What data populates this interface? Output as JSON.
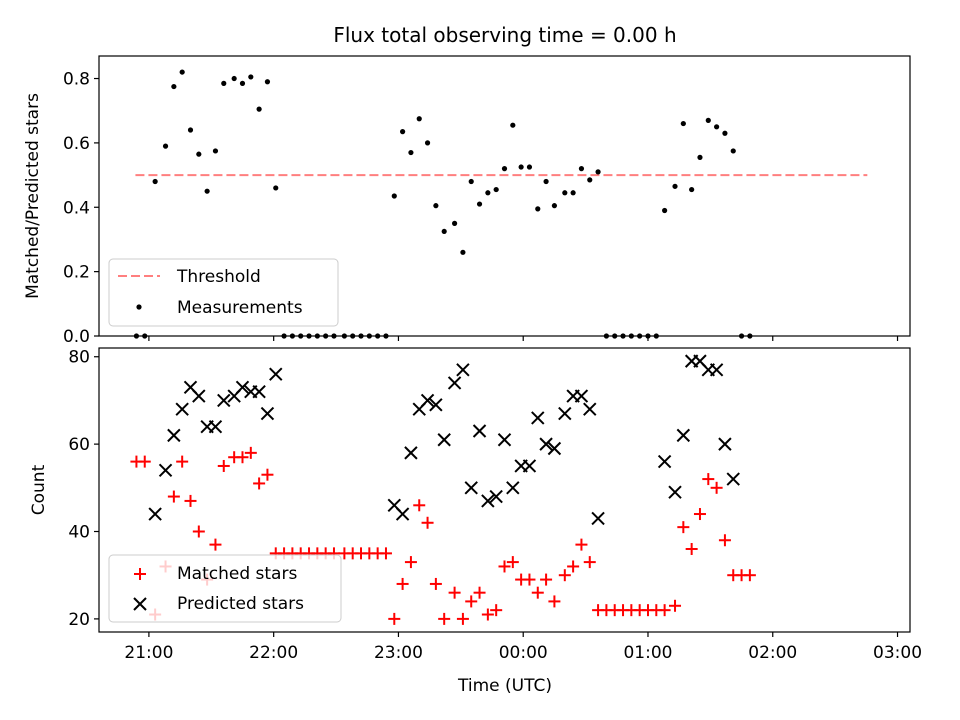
{
  "figure": {
    "title": "Flux total observing time = 0.00 h",
    "xlabel": "Time (UTC)",
    "xticks": [
      "21:00",
      "22:00",
      "23:00",
      "00:00",
      "01:00",
      "02:00",
      "03:00"
    ],
    "colors": {
      "threshold": "#ff7f7f",
      "measurements": "#000000",
      "matched": "#ff0000",
      "predicted": "#000000"
    }
  },
  "chart_data": [
    {
      "type": "scatter",
      "ylabel": "Matched/Predicted stars",
      "xlim": [
        "20:36",
        "03:06"
      ],
      "ylim": [
        0,
        0.87
      ],
      "yticks": [
        "0.0",
        "0.2",
        "0.4",
        "0.6",
        "0.8"
      ],
      "grid": false,
      "legend": {
        "placement": "lower-left",
        "threshold_label": "Threshold",
        "measurements_label": "Measurements"
      },
      "threshold": 0.5,
      "threshold_x_range": [
        "20:54",
        "02:45"
      ],
      "series": [
        {
          "name": "Measurements",
          "points": [
            [
              "20:54",
              0
            ],
            [
              "20:58",
              0
            ],
            [
              "21:03",
              0.48
            ],
            [
              "21:08",
              0.59
            ],
            [
              "21:12",
              0.775
            ],
            [
              "21:16",
              0.82
            ],
            [
              "21:20",
              0.64
            ],
            [
              "21:24",
              0.565
            ],
            [
              "21:28",
              0.45
            ],
            [
              "21:32",
              0.575
            ],
            [
              "21:36",
              0.785
            ],
            [
              "21:41",
              0.8
            ],
            [
              "21:45",
              0.785
            ],
            [
              "21:49",
              0.805
            ],
            [
              "21:53",
              0.705
            ],
            [
              "21:57",
              0.79
            ],
            [
              "22:01",
              0.46
            ],
            [
              "22:05",
              0
            ],
            [
              "22:09",
              0
            ],
            [
              "22:13",
              0
            ],
            [
              "22:17",
              0
            ],
            [
              "22:21",
              0
            ],
            [
              "22:25",
              0
            ],
            [
              "22:29",
              0
            ],
            [
              "22:34",
              0
            ],
            [
              "22:38",
              0
            ],
            [
              "22:42",
              0
            ],
            [
              "22:46",
              0
            ],
            [
              "22:50",
              0
            ],
            [
              "22:54",
              0
            ],
            [
              "22:58",
              0.435
            ],
            [
              "23:02",
              0.635
            ],
            [
              "23:06",
              0.57
            ],
            [
              "23:10",
              0.675
            ],
            [
              "23:14",
              0.6
            ],
            [
              "23:18",
              0.405
            ],
            [
              "23:22",
              0.325
            ],
            [
              "23:27",
              0.35
            ],
            [
              "23:31",
              0.26
            ],
            [
              "23:35",
              0.48
            ],
            [
              "23:39",
              0.41
            ],
            [
              "23:43",
              0.445
            ],
            [
              "23:47",
              0.455
            ],
            [
              "23:51",
              0.52
            ],
            [
              "23:55",
              0.655
            ],
            [
              "23:59",
              0.525
            ],
            [
              "00:03",
              0.525
            ],
            [
              "00:07",
              0.395
            ],
            [
              "00:11",
              0.48
            ],
            [
              "00:15",
              0.405
            ],
            [
              "00:20",
              0.445
            ],
            [
              "00:24",
              0.445
            ],
            [
              "00:28",
              0.52
            ],
            [
              "00:32",
              0.485
            ],
            [
              "00:36",
              0.51
            ],
            [
              "00:40",
              0
            ],
            [
              "00:44",
              0
            ],
            [
              "00:48",
              0
            ],
            [
              "00:52",
              0
            ],
            [
              "00:56",
              0
            ],
            [
              "01:00",
              0
            ],
            [
              "01:04",
              0
            ],
            [
              "01:08",
              0.39
            ],
            [
              "01:13",
              0.465
            ],
            [
              "01:17",
              0.66
            ],
            [
              "01:21",
              0.455
            ],
            [
              "01:25",
              0.555
            ],
            [
              "01:29",
              0.67
            ],
            [
              "01:33",
              0.65
            ],
            [
              "01:37",
              0.63
            ],
            [
              "01:41",
              0.575
            ],
            [
              "01:45",
              0
            ],
            [
              "01:49",
              0
            ]
          ]
        }
      ]
    },
    {
      "type": "scatter",
      "ylabel": "Count",
      "xlim": [
        "20:36",
        "03:06"
      ],
      "ylim": [
        17,
        82
      ],
      "yticks": [
        "20",
        "40",
        "60",
        "80"
      ],
      "grid": false,
      "legend": {
        "placement": "lower-left"
      },
      "series": [
        {
          "name": "Matched stars",
          "points": [
            [
              "20:54",
              56
            ],
            [
              "20:58",
              56
            ],
            [
              "21:03",
              21
            ],
            [
              "21:08",
              32
            ],
            [
              "21:12",
              48
            ],
            [
              "21:16",
              56
            ],
            [
              "21:20",
              47
            ],
            [
              "21:24",
              40
            ],
            [
              "21:28",
              29
            ],
            [
              "21:32",
              37
            ],
            [
              "21:36",
              55
            ],
            [
              "21:41",
              57
            ],
            [
              "21:45",
              57
            ],
            [
              "21:49",
              58
            ],
            [
              "21:53",
              51
            ],
            [
              "21:57",
              53
            ],
            [
              "22:01",
              35
            ],
            [
              "22:05",
              35
            ],
            [
              "22:09",
              35
            ],
            [
              "22:13",
              35
            ],
            [
              "22:17",
              35
            ],
            [
              "22:21",
              35
            ],
            [
              "22:25",
              35
            ],
            [
              "22:29",
              35
            ],
            [
              "22:34",
              35
            ],
            [
              "22:38",
              35
            ],
            [
              "22:42",
              35
            ],
            [
              "22:46",
              35
            ],
            [
              "22:50",
              35
            ],
            [
              "22:54",
              35
            ],
            [
              "22:58",
              20
            ],
            [
              "23:02",
              28
            ],
            [
              "23:06",
              33
            ],
            [
              "23:10",
              46
            ],
            [
              "23:14",
              42
            ],
            [
              "23:18",
              28
            ],
            [
              "23:22",
              20
            ],
            [
              "23:27",
              26
            ],
            [
              "23:31",
              20
            ],
            [
              "23:35",
              24
            ],
            [
              "23:39",
              26
            ],
            [
              "23:43",
              21
            ],
            [
              "23:47",
              22
            ],
            [
              "23:51",
              32
            ],
            [
              "23:55",
              33
            ],
            [
              "23:59",
              29
            ],
            [
              "00:03",
              29
            ],
            [
              "00:07",
              26
            ],
            [
              "00:11",
              29
            ],
            [
              "00:15",
              24
            ],
            [
              "00:20",
              30
            ],
            [
              "00:24",
              32
            ],
            [
              "00:28",
              37
            ],
            [
              "00:32",
              33
            ],
            [
              "00:36",
              22
            ],
            [
              "00:40",
              22
            ],
            [
              "00:44",
              22
            ],
            [
              "00:48",
              22
            ],
            [
              "00:52",
              22
            ],
            [
              "00:56",
              22
            ],
            [
              "01:00",
              22
            ],
            [
              "01:04",
              22
            ],
            [
              "01:08",
              22
            ],
            [
              "01:13",
              23
            ],
            [
              "01:17",
              41
            ],
            [
              "01:21",
              36
            ],
            [
              "01:25",
              44
            ],
            [
              "01:29",
              52
            ],
            [
              "01:33",
              50
            ],
            [
              "01:37",
              38
            ],
            [
              "01:41",
              30
            ],
            [
              "01:45",
              30
            ],
            [
              "01:49",
              30
            ]
          ]
        },
        {
          "name": "Predicted stars",
          "points": [
            [
              "21:03",
              44
            ],
            [
              "21:08",
              54
            ],
            [
              "21:12",
              62
            ],
            [
              "21:16",
              68
            ],
            [
              "21:20",
              73
            ],
            [
              "21:24",
              71
            ],
            [
              "21:28",
              64
            ],
            [
              "21:32",
              64
            ],
            [
              "21:36",
              70
            ],
            [
              "21:41",
              71
            ],
            [
              "21:45",
              73
            ],
            [
              "21:49",
              72
            ],
            [
              "21:53",
              72
            ],
            [
              "21:57",
              67
            ],
            [
              "22:01",
              76
            ],
            [
              "22:58",
              46
            ],
            [
              "23:02",
              44
            ],
            [
              "23:06",
              58
            ],
            [
              "23:10",
              68
            ],
            [
              "23:14",
              70
            ],
            [
              "23:18",
              69
            ],
            [
              "23:22",
              61
            ],
            [
              "23:27",
              74
            ],
            [
              "23:31",
              77
            ],
            [
              "23:35",
              50
            ],
            [
              "23:39",
              63
            ],
            [
              "23:43",
              47
            ],
            [
              "23:47",
              48
            ],
            [
              "23:51",
              61
            ],
            [
              "23:55",
              50
            ],
            [
              "23:59",
              55
            ],
            [
              "00:03",
              55
            ],
            [
              "00:07",
              66
            ],
            [
              "00:11",
              60
            ],
            [
              "00:15",
              59
            ],
            [
              "00:20",
              67
            ],
            [
              "00:24",
              71
            ],
            [
              "00:28",
              71
            ],
            [
              "00:32",
              68
            ],
            [
              "00:36",
              43
            ],
            [
              "01:08",
              56
            ],
            [
              "01:13",
              49
            ],
            [
              "01:17",
              62
            ],
            [
              "01:21",
              79
            ],
            [
              "01:25",
              79
            ],
            [
              "01:29",
              77
            ],
            [
              "01:33",
              77
            ],
            [
              "01:37",
              60
            ],
            [
              "01:41",
              52
            ]
          ]
        }
      ]
    }
  ]
}
